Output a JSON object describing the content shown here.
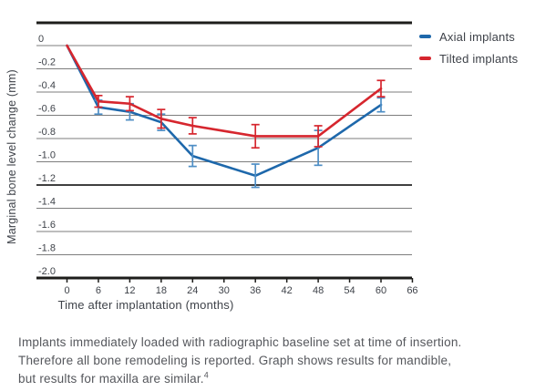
{
  "chart_data": {
    "type": "line",
    "title": "",
    "xlabel": "Time after implantation (months)",
    "ylabel": "Marginal bone level change (mm)",
    "x_ticks": [
      0,
      6,
      12,
      18,
      24,
      30,
      36,
      42,
      48,
      54,
      60,
      66
    ],
    "x_tick_labels": [
      "0",
      "6",
      "12",
      "18",
      "24",
      "30",
      "36",
      "42",
      "48",
      "54",
      "60",
      "66"
    ],
    "y_ticks": [
      0,
      -0.2,
      -0.4,
      -0.6,
      -0.8,
      -1.0,
      -1.2,
      -1.4,
      -1.6,
      -1.8,
      -2.0
    ],
    "y_tick_labels": [
      "0",
      "-0.2",
      "-0.4",
      "-0.6",
      "-0.8",
      "-1.0",
      "-1.2",
      "-1.4",
      "-1.6",
      "-1.8",
      "-2.0"
    ],
    "xlim": [
      -6,
      66
    ],
    "ylim": [
      -2.0,
      0
    ],
    "grid": "horizontal",
    "emphasized_gridline": -1.2,
    "legend_position": "top-right",
    "x": [
      0,
      6,
      12,
      18,
      24,
      36,
      48,
      60
    ],
    "series": [
      {
        "name": "Axial implants",
        "color": "#1e68ab",
        "error_color": "#4e8ec5",
        "values": [
          0,
          -0.53,
          -0.57,
          -0.66,
          -0.95,
          -1.12,
          -0.88,
          -0.51
        ],
        "errors": [
          0,
          0.06,
          0.07,
          0.07,
          0.09,
          0.1,
          0.15,
          0.06
        ]
      },
      {
        "name": "Tilted implants",
        "color": "#d6262e",
        "error_color": "#d6262e",
        "values": [
          0,
          -0.48,
          -0.5,
          -0.63,
          -0.69,
          -0.78,
          -0.78,
          -0.37
        ],
        "errors": [
          0,
          0.05,
          0.06,
          0.08,
          0.07,
          0.1,
          0.09,
          0.07
        ]
      }
    ]
  },
  "caption": {
    "lines": [
      "Implants immediately loaded with radiographic baseline set at time of insertion.",
      "Therefore all bone remodeling is reported. Graph shows results for mandible,",
      "but results for maxilla are similar."
    ],
    "reference_mark": "4"
  },
  "colors": {
    "axis": "#1d1d1b",
    "grid": "#7d7d7d",
    "grid_emphasized": "#3f3f3f",
    "tick_text": "#3e4249",
    "caption_text": "#55575c"
  }
}
